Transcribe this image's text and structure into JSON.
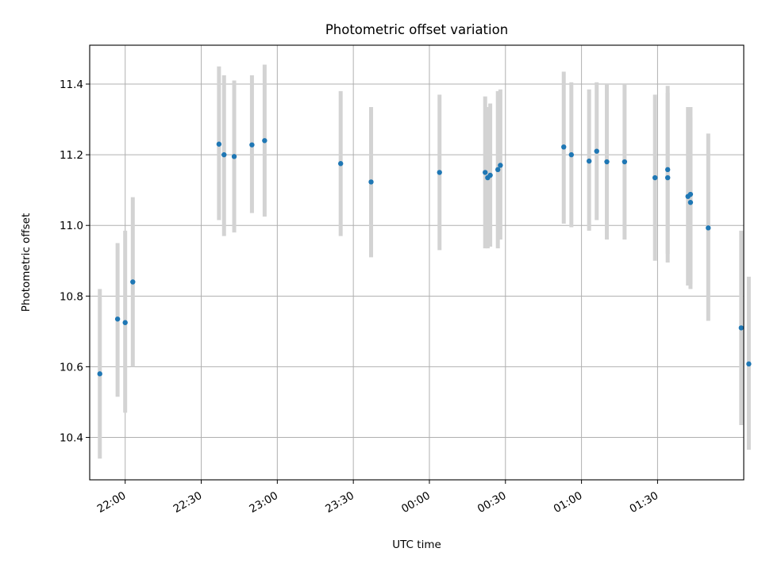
{
  "chart_data": {
    "type": "scatter",
    "title": "Photometric offset variation",
    "xlabel": "UTC time",
    "ylabel": "Photometric offset",
    "xlim": [
      "21:46",
      "02:04"
    ],
    "ylim": [
      10.28,
      11.51
    ],
    "grid": true,
    "x_ticks": [
      "22:00",
      "22:30",
      "23:00",
      "23:30",
      "00:00",
      "00:30",
      "01:00",
      "01:30"
    ],
    "y_ticks": [
      "10.4",
      "10.6",
      "10.8",
      "11.0",
      "11.2",
      "11.4"
    ],
    "colors": {
      "points": "#1f77b4",
      "errorbars": "#d3d3d3",
      "grid": "#b0b0b0"
    },
    "points": [
      {
        "x": "21:50",
        "y": 10.58,
        "ylow": 10.34,
        "yhigh": 10.82
      },
      {
        "x": "21:57",
        "y": 10.735,
        "ylow": 10.515,
        "yhigh": 10.95
      },
      {
        "x": "22:00",
        "y": 10.725,
        "ylow": 10.47,
        "yhigh": 10.985
      },
      {
        "x": "22:03",
        "y": 10.84,
        "ylow": 10.6,
        "yhigh": 11.08
      },
      {
        "x": "22:37",
        "y": 11.23,
        "ylow": 11.015,
        "yhigh": 11.45
      },
      {
        "x": "22:39",
        "y": 11.2,
        "ylow": 10.97,
        "yhigh": 11.425
      },
      {
        "x": "22:43",
        "y": 11.195,
        "ylow": 10.98,
        "yhigh": 11.41
      },
      {
        "x": "22:50",
        "y": 11.228,
        "ylow": 11.035,
        "yhigh": 11.425
      },
      {
        "x": "22:55",
        "y": 11.24,
        "ylow": 11.025,
        "yhigh": 11.455
      },
      {
        "x": "23:25",
        "y": 11.175,
        "ylow": 10.97,
        "yhigh": 11.38
      },
      {
        "x": "23:37",
        "y": 11.123,
        "ylow": 10.91,
        "yhigh": 11.335
      },
      {
        "x": "00:04",
        "y": 11.15,
        "ylow": 10.93,
        "yhigh": 11.37
      },
      {
        "x": "00:22",
        "y": 11.15,
        "ylow": 10.935,
        "yhigh": 11.365
      },
      {
        "x": "00:23",
        "y": 11.135,
        "ylow": 10.935,
        "yhigh": 11.335
      },
      {
        "x": "00:24",
        "y": 11.142,
        "ylow": 10.94,
        "yhigh": 11.345
      },
      {
        "x": "00:27",
        "y": 11.158,
        "ylow": 10.935,
        "yhigh": 11.38
      },
      {
        "x": "00:28",
        "y": 11.17,
        "ylow": 10.96,
        "yhigh": 11.385
      },
      {
        "x": "00:53",
        "y": 11.222,
        "ylow": 11.005,
        "yhigh": 11.435
      },
      {
        "x": "00:56",
        "y": 11.2,
        "ylow": 10.995,
        "yhigh": 11.405
      },
      {
        "x": "01:03",
        "y": 11.182,
        "ylow": 10.985,
        "yhigh": 11.385
      },
      {
        "x": "01:06",
        "y": 11.21,
        "ylow": 11.015,
        "yhigh": 11.405
      },
      {
        "x": "01:10",
        "y": 11.18,
        "ylow": 10.96,
        "yhigh": 11.4
      },
      {
        "x": "01:17",
        "y": 11.18,
        "ylow": 10.96,
        "yhigh": 11.4
      },
      {
        "x": "01:29",
        "y": 11.135,
        "ylow": 10.9,
        "yhigh": 11.37
      },
      {
        "x": "01:34",
        "y": 11.158,
        "ylow": 10.92,
        "yhigh": 11.395
      },
      {
        "x": "01:34",
        "y": 11.135,
        "ylow": 10.895,
        "yhigh": 11.375
      },
      {
        "x": "01:42",
        "y": 11.082,
        "ylow": 10.83,
        "yhigh": 11.335
      },
      {
        "x": "01:43",
        "y": 11.088,
        "ylow": 10.835,
        "yhigh": 11.335
      },
      {
        "x": "01:43",
        "y": 11.065,
        "ylow": 10.82,
        "yhigh": 11.305
      },
      {
        "x": "01:50",
        "y": 10.993,
        "ylow": 10.73,
        "yhigh": 11.26
      },
      {
        "x": "02:03",
        "y": 10.71,
        "ylow": 10.435,
        "yhigh": 10.985
      },
      {
        "x": "02:06",
        "y": 10.608,
        "ylow": 10.365,
        "yhigh": 10.855
      }
    ]
  }
}
